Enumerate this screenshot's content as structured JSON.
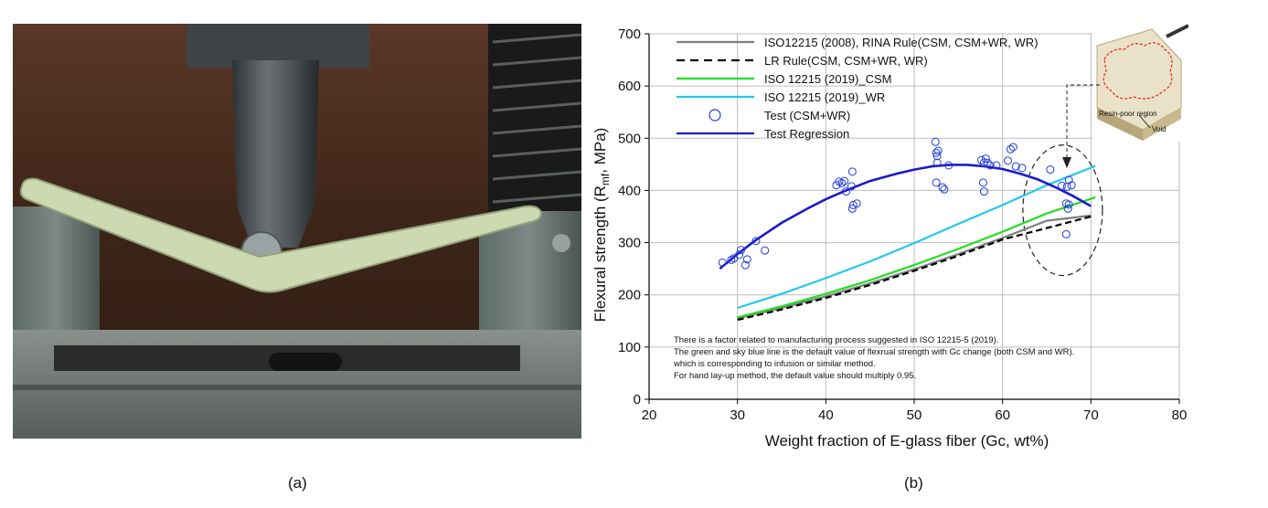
{
  "figure": {
    "caption_a": "(a)",
    "caption_b": "(b)"
  },
  "photo_a": {
    "subject": "flexural-test-photo",
    "colors": {
      "background": "#3a2418",
      "specimen": "#cdd9b0",
      "steel": "#4a4f52",
      "base": "#6b716f"
    }
  },
  "chart_data": {
    "type": "scatter",
    "xlabel": "Weight fraction of E-glass fiber (Gc, wt%)",
    "ylabel": "Flexural strength (R",
    "ylabel_sub": "mf",
    "ylabel_tail": ", MPa)",
    "xlim": [
      20,
      80
    ],
    "ylim": [
      0,
      700
    ],
    "xticks": [
      "20",
      "30",
      "40",
      "50",
      "60",
      "70",
      "80"
    ],
    "yticks": [
      "0",
      "100",
      "200",
      "300",
      "400",
      "500",
      "600",
      "700"
    ],
    "grid": true,
    "legend_position": "top-left",
    "legend": [
      {
        "label": "ISO12215 (2008), RINA Rule(CSM, CSM+WR, WR)",
        "style": "solid",
        "color": "#7f7f7f",
        "marker": false
      },
      {
        "label": "LR Rule(CSM, CSM+WR, WR)",
        "style": "dashed",
        "color": "#000000",
        "marker": false
      },
      {
        "label": "ISO 12215 (2019)_CSM",
        "style": "solid",
        "color": "#22dd22",
        "marker": false
      },
      {
        "label": "ISO 12215 (2019)_WR",
        "style": "solid",
        "color": "#22c7ee",
        "marker": false
      },
      {
        "label": "Test (CSM+WR)",
        "style": "none",
        "color": "#1f3dd9",
        "marker": true
      },
      {
        "label": "Test Regression",
        "style": "solid",
        "color": "#1a1acc",
        "marker": false
      }
    ],
    "series": [
      {
        "name": "ISO12215 (2008), RINA Rule(CSM, CSM+WR, WR)",
        "kind": "line",
        "color": "#7f7f7f",
        "dash": false,
        "x": [
          30,
          35,
          40,
          45,
          50,
          55,
          60,
          65,
          70
        ],
        "y": [
          155,
          175,
          197,
          222,
          249,
          278,
          309,
          342,
          352
        ]
      },
      {
        "name": "LR Rule(CSM, CSM+WR, WR)",
        "kind": "line",
        "color": "#000000",
        "dash": true,
        "x": [
          30,
          35,
          40,
          45,
          50,
          55,
          60,
          65,
          70
        ],
        "y": [
          152,
          172,
          194,
          219,
          246,
          275,
          306,
          328,
          350
        ]
      },
      {
        "name": "ISO 12215 (2019)_CSM",
        "kind": "line",
        "color": "#22dd22",
        "dash": false,
        "x": [
          30,
          35,
          40,
          45,
          50,
          55,
          60,
          65,
          70.5
        ],
        "y": [
          157,
          178,
          202,
          228,
          257,
          288,
          321,
          356,
          387
        ]
      },
      {
        "name": "ISO 12215 (2019)_WR",
        "kind": "line",
        "color": "#22c7ee",
        "dash": false,
        "x": [
          30,
          35,
          40,
          45,
          50,
          55,
          60,
          65,
          70.5
        ],
        "y": [
          175,
          202,
          232,
          264,
          299,
          336,
          372,
          410,
          447
        ]
      },
      {
        "name": "Test Regression",
        "kind": "line",
        "color": "#1a1acc",
        "dash": false,
        "x": [
          28,
          30,
          32,
          35,
          38,
          40,
          42,
          45,
          48,
          50,
          52,
          54,
          56,
          58,
          60,
          62,
          64,
          66,
          68,
          70
        ],
        "y": [
          250,
          278,
          304,
          338,
          366,
          383,
          398,
          418,
          432,
          440,
          446,
          449,
          449,
          446,
          441,
          432,
          421,
          406,
          389,
          370
        ]
      },
      {
        "name": "Test (CSM+WR)",
        "kind": "scatter",
        "color": "#1f3dd9",
        "points": [
          [
            28.3,
            262
          ],
          [
            29.3,
            267
          ],
          [
            29.6,
            270
          ],
          [
            30.2,
            277
          ],
          [
            30.4,
            286
          ],
          [
            30.9,
            257
          ],
          [
            31.1,
            268
          ],
          [
            32.1,
            303
          ],
          [
            33.1,
            285
          ],
          [
            41.2,
            410
          ],
          [
            41.5,
            417
          ],
          [
            41.8,
            414
          ],
          [
            42.1,
            418
          ],
          [
            42.3,
            398
          ],
          [
            42.9,
            408
          ],
          [
            43.0,
            436
          ],
          [
            43.1,
            372
          ],
          [
            43.0,
            365
          ],
          [
            43.5,
            375
          ],
          [
            52.4,
            493
          ],
          [
            52.5,
            472
          ],
          [
            52.6,
            466
          ],
          [
            52.7,
            476
          ],
          [
            52.6,
            453
          ],
          [
            52.5,
            415
          ],
          [
            53.2,
            406
          ],
          [
            53.4,
            402
          ],
          [
            53.9,
            448
          ],
          [
            57.6,
            458
          ],
          [
            57.9,
            453
          ],
          [
            58.1,
            461
          ],
          [
            58.3,
            453
          ],
          [
            57.8,
            415
          ],
          [
            57.9,
            398
          ],
          [
            58.6,
            448
          ],
          [
            59.3,
            448
          ],
          [
            60.6,
            457
          ],
          [
            60.9,
            479
          ],
          [
            61.2,
            483
          ],
          [
            61.5,
            446
          ],
          [
            62.2,
            443
          ],
          [
            65.4,
            440
          ],
          [
            66.7,
            409
          ],
          [
            67.3,
            407
          ],
          [
            67.5,
            420
          ],
          [
            67.2,
            375
          ],
          [
            67.5,
            373
          ],
          [
            67.4,
            365
          ],
          [
            67.2,
            316
          ],
          [
            67.8,
            410
          ]
        ]
      }
    ],
    "annotation": {
      "lines": [
        "There is a factor related to manufacturing process suggested in ISO 12215-5 (2019).",
        "The green and sky blue line is the default value of flexrual strength with Gc change (both CSM and WR).",
        "which is corresponding to infusion or similar method.",
        "For hand lay-up method, the default value should multiply 0.95."
      ]
    },
    "circle_highlight": {
      "center": [
        66.8,
        362
      ],
      "rx": 4.5,
      "ry": 125
    },
    "inset": {
      "labels": [
        "Resin-poor region",
        "Void"
      ],
      "colors": {
        "laminate": "#e9e2c8",
        "edge": "#c9b98d",
        "outline": "#dd2222"
      }
    }
  }
}
